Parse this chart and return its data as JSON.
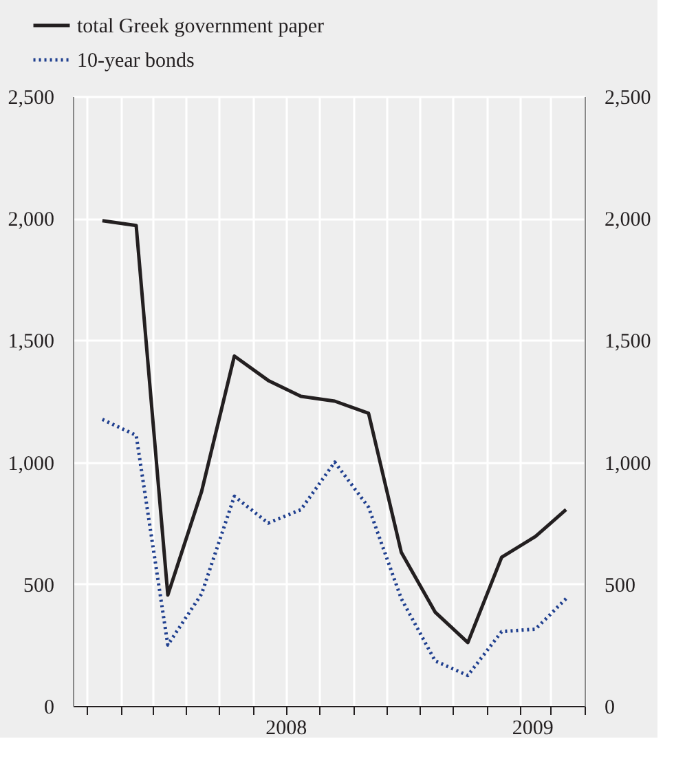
{
  "chart_data": {
    "type": "line",
    "x": [
      "2008-01-15",
      "2008-02-15",
      "2008-03-15",
      "2008-04-15",
      "2008-05-15",
      "2008-06-15",
      "2008-07-15",
      "2008-08-15",
      "2008-09-15",
      "2008-10-15",
      "2008-11-15",
      "2008-12-15",
      "2009-01-15",
      "2009-02-15",
      "2009-03-15"
    ],
    "series": [
      {
        "name": "total Greek government paper",
        "color": "#231f20",
        "line_style": "solid",
        "values": [
          1990,
          1970,
          455,
          880,
          1435,
          1335,
          1270,
          1250,
          1200,
          630,
          385,
          260,
          610,
          695,
          805
        ]
      },
      {
        "name": "10-year bonds",
        "color": "#1f3f8f",
        "line_style": "dotted",
        "values": [
          1175,
          1110,
          250,
          460,
          860,
          750,
          805,
          1000,
          815,
          440,
          185,
          125,
          305,
          315,
          440
        ]
      }
    ],
    "xlim": [
      "2007-12-19",
      "2009-04-01"
    ],
    "xticks": [
      {
        "value": "2008-01-01",
        "label": null
      },
      {
        "value": "2008-02-01",
        "label": null
      },
      {
        "value": "2008-03-01",
        "label": null
      },
      {
        "value": "2008-04-01",
        "label": null
      },
      {
        "value": "2008-05-01",
        "label": null
      },
      {
        "value": "2008-06-01",
        "label": null
      },
      {
        "value": "2008-07-01",
        "label": null
      },
      {
        "value": "2008-08-01",
        "label": null
      },
      {
        "value": "2008-09-01",
        "label": null
      },
      {
        "value": "2008-10-01",
        "label": null
      },
      {
        "value": "2008-11-01",
        "label": null
      },
      {
        "value": "2008-12-01",
        "label": null
      },
      {
        "value": "2009-01-01",
        "label": null
      },
      {
        "value": "2009-02-01",
        "label": null
      },
      {
        "value": "2009-03-01",
        "label": null
      },
      {
        "value": "2009-04-01",
        "label": null
      },
      {
        "value": "2008-07-01",
        "label": "2008"
      },
      {
        "value": "2009-02-12",
        "label": "2009"
      }
    ],
    "ylim": [
      0,
      2500
    ],
    "yticks": [
      0,
      500,
      {
        "value": 1000,
        "label": "1,000"
      },
      {
        "value": 1500,
        "label": "1,500"
      },
      {
        "value": 2000,
        "label": "2,000"
      },
      {
        "value": 2500,
        "label": "2,500"
      }
    ],
    "y2lim": [
      0,
      2500
    ],
    "y2ticks": [
      0,
      500,
      {
        "value": 1000,
        "label": "1,000"
      },
      {
        "value": 1500,
        "label": "1,500"
      },
      {
        "value": 2000,
        "label": "2,000"
      },
      {
        "value": 2500,
        "label": "2,500"
      }
    ],
    "grid": true,
    "legend": "top left"
  }
}
